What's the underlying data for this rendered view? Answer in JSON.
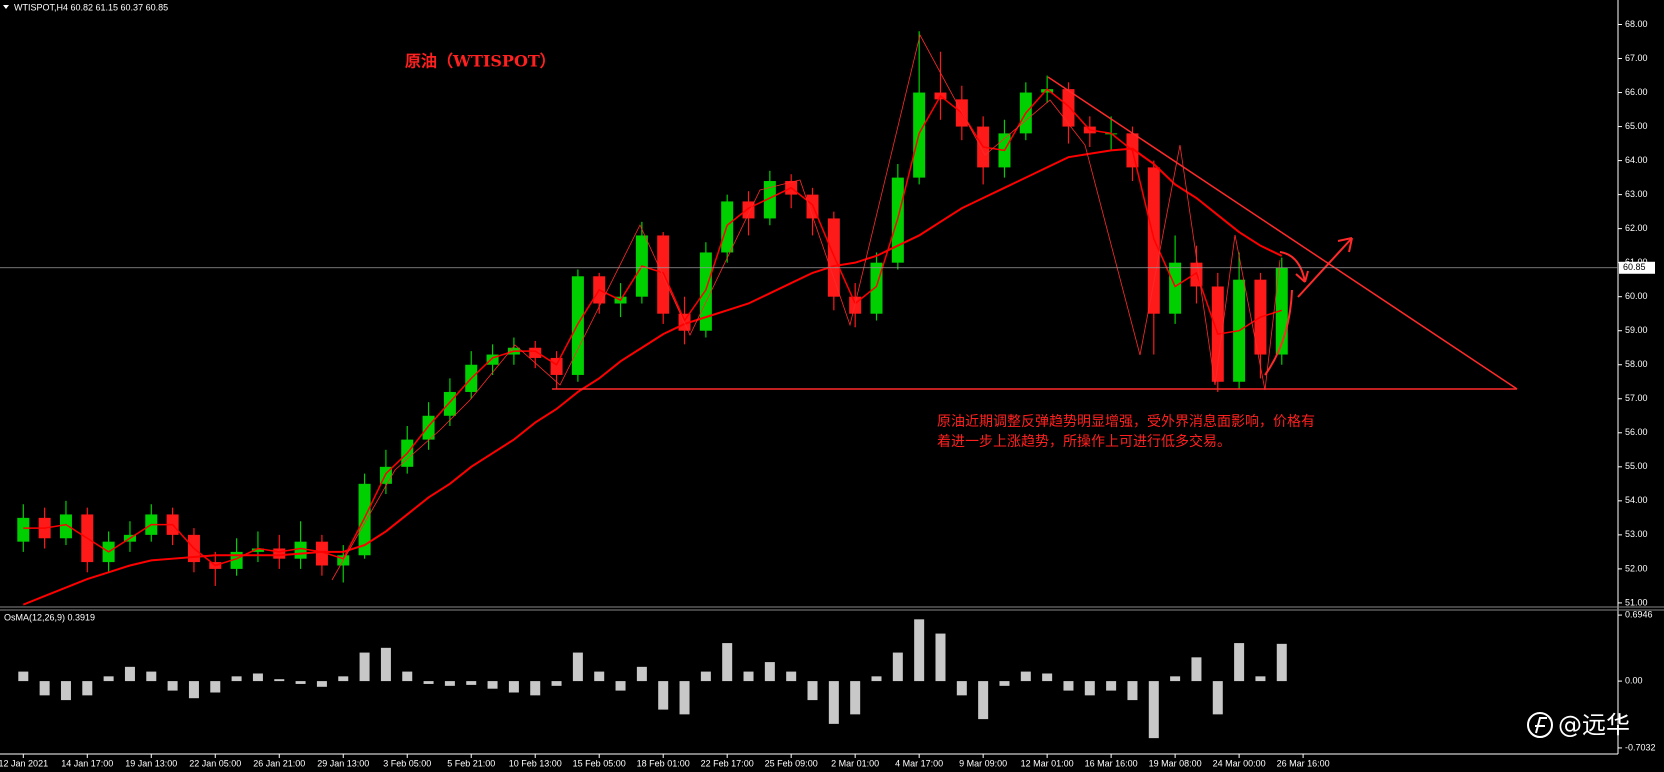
{
  "chart_data": {
    "type": "candlestick",
    "header": "WTISPOT,H4  60.82 61.15 60.37 60.85",
    "title": "原油（WTISPOT）",
    "annotation": [
      "原油近期调整反弹趋势明显增强，受外界消息面影响，价格有",
      "着进一步上涨趋势，所操作上可进行低多交易。"
    ],
    "x_labels": [
      "12 Jan 2021",
      "14 Jan 17:00",
      "19 Jan 13:00",
      "22 Jan 05:00",
      "26 Jan 21:00",
      "29 Jan 13:00",
      "3 Feb 05:00",
      "5 Feb 21:00",
      "10 Feb 13:00",
      "15 Feb 05:00",
      "18 Feb 01:00",
      "22 Feb 17:00",
      "25 Feb 09:00",
      "2 Mar 01:00",
      "4 Mar 17:00",
      "9 Mar 09:00",
      "12 Mar 01:00",
      "16 Mar 16:00",
      "19 Mar 08:00",
      "24 Mar 00:00",
      "26 Mar 16:00"
    ],
    "ylim": [
      50.88,
      68.72
    ],
    "yticks": [
      {
        "value": 51,
        "label": "51.00"
      },
      {
        "value": 52,
        "label": "52.00"
      },
      {
        "value": 53,
        "label": "53.00"
      },
      {
        "value": 54,
        "label": "54.00"
      },
      {
        "value": 55,
        "label": "55.00"
      },
      {
        "value": 56,
        "label": "56.00"
      },
      {
        "value": 57,
        "label": "57.00"
      },
      {
        "value": 58,
        "label": "58.00"
      },
      {
        "value": 59,
        "label": "59.00"
      },
      {
        "value": 60,
        "label": "60.00"
      },
      {
        "value": 61,
        "label": "61.00"
      },
      {
        "value": 62,
        "label": "62.00"
      },
      {
        "value": 63,
        "label": "63.00"
      },
      {
        "value": 64,
        "label": "64.00"
      },
      {
        "value": 65,
        "label": "65.00"
      },
      {
        "value": 66,
        "label": "66.00"
      },
      {
        "value": 67,
        "label": "67.00"
      },
      {
        "value": 68,
        "label": "68.00"
      }
    ],
    "current_price": 60.85,
    "candles": {
      "up_color": "#00d000",
      "down_color": "#ff1a1a",
      "open": [
        52.8,
        53.5,
        52.9,
        53.6,
        52.2,
        52.8,
        53.0,
        53.6,
        53.0,
        52.2,
        52.0,
        52.5,
        52.6,
        52.3,
        52.8,
        52.1,
        52.4,
        54.5,
        55.0,
        55.8,
        56.5,
        57.2,
        58.0,
        58.3,
        58.5,
        58.2,
        57.7,
        60.6,
        59.8,
        60.0,
        61.8,
        59.5,
        59.0,
        61.3,
        62.8,
        62.3,
        63.4,
        63.0,
        62.3,
        60.0,
        59.5,
        61.0,
        63.5,
        66.0,
        65.8,
        65.0,
        63.8,
        64.8,
        66.0,
        66.1,
        65.0,
        64.8,
        64.8,
        63.8,
        59.5,
        61.0,
        60.3,
        57.5,
        60.5,
        58.3
      ],
      "high": [
        53.9,
        53.8,
        54.0,
        53.8,
        53.1,
        53.4,
        53.9,
        53.8,
        53.2,
        52.5,
        52.9,
        53.1,
        53.0,
        53.4,
        53.0,
        52.7,
        54.8,
        55.5,
        56.2,
        56.9,
        57.6,
        58.4,
        58.6,
        58.8,
        58.7,
        58.4,
        60.8,
        60.7,
        60.4,
        62.2,
        61.9,
        60.0,
        61.6,
        63.0,
        63.1,
        63.7,
        63.6,
        63.2,
        62.5,
        60.4,
        61.3,
        63.9,
        67.8,
        67.2,
        66.2,
        65.3,
        65.2,
        66.3,
        66.5,
        66.3,
        65.3,
        65.3,
        65.0,
        64.0,
        61.8,
        61.5,
        60.7,
        61.3,
        60.7,
        61.15
      ],
      "low": [
        52.5,
        52.6,
        52.7,
        51.9,
        51.9,
        52.5,
        52.8,
        52.7,
        51.9,
        51.5,
        51.8,
        52.2,
        52.0,
        52.0,
        51.8,
        51.6,
        52.3,
        54.2,
        54.8,
        55.5,
        56.2,
        57.0,
        57.7,
        58.0,
        57.9,
        57.3,
        57.5,
        59.5,
        59.4,
        59.8,
        59.2,
        58.6,
        58.8,
        61.0,
        61.8,
        62.1,
        62.6,
        61.8,
        59.6,
        59.1,
        59.3,
        60.8,
        63.3,
        65.2,
        64.6,
        63.3,
        63.5,
        64.6,
        65.7,
        64.5,
        64.4,
        64.3,
        63.4,
        58.3,
        59.2,
        59.8,
        57.2,
        57.3,
        57.6,
        58.0
      ],
      "close": [
        53.5,
        52.9,
        53.6,
        52.2,
        52.8,
        53.0,
        53.6,
        53.0,
        52.2,
        52.0,
        52.5,
        52.6,
        52.3,
        52.8,
        52.1,
        52.4,
        54.5,
        55.0,
        55.8,
        56.5,
        57.2,
        58.0,
        58.3,
        58.5,
        58.2,
        57.7,
        60.6,
        59.8,
        60.0,
        61.8,
        59.5,
        59.0,
        61.3,
        62.8,
        62.3,
        63.4,
        63.0,
        62.3,
        60.0,
        59.5,
        61.0,
        63.5,
        66.0,
        65.8,
        65.0,
        63.8,
        64.8,
        66.0,
        66.1,
        65.0,
        64.8,
        64.8,
        63.8,
        59.5,
        61.0,
        60.3,
        57.5,
        60.5,
        58.3,
        60.85
      ]
    },
    "ma_fast": {
      "color": "#ff0000",
      "values": [
        53.2,
        53.2,
        53.3,
        52.9,
        52.5,
        52.9,
        53.3,
        53.3,
        52.6,
        52.1,
        52.3,
        52.6,
        52.5,
        52.6,
        52.5,
        52.3,
        53.5,
        54.8,
        55.4,
        56.2,
        56.9,
        57.6,
        58.2,
        58.4,
        58.4,
        58.0,
        59.2,
        60.2,
        59.9,
        60.9,
        60.7,
        59.3,
        60.2,
        62.1,
        62.6,
        62.9,
        63.2,
        62.7,
        61.2,
        59.8,
        60.3,
        62.3,
        64.8,
        65.9,
        65.4,
        64.4,
        64.3,
        65.4,
        66.1,
        65.6,
        64.9,
        64.8,
        64.3,
        61.7,
        60.3,
        60.7,
        58.9,
        59.0,
        59.4,
        59.6
      ]
    },
    "ma_slow": {
      "color": "#ff0000",
      "values": [
        50.95,
        51.2,
        51.45,
        51.7,
        51.9,
        52.1,
        52.25,
        52.3,
        52.35,
        52.4,
        52.4,
        52.4,
        52.4,
        52.45,
        52.5,
        52.5,
        52.7,
        53.1,
        53.6,
        54.1,
        54.5,
        55.0,
        55.4,
        55.8,
        56.3,
        56.7,
        57.2,
        57.6,
        58.1,
        58.5,
        58.9,
        59.2,
        59.4,
        59.6,
        59.8,
        60.1,
        60.4,
        60.7,
        60.9,
        61.0,
        61.2,
        61.5,
        61.8,
        62.2,
        62.6,
        62.9,
        63.2,
        63.5,
        63.8,
        64.1,
        64.2,
        64.3,
        64.35,
        63.9,
        63.3,
        62.9,
        62.4,
        61.9,
        61.5,
        61.2
      ]
    },
    "indicator": {
      "label": "OsMA(12,26,9) 0.3919",
      "color": "#c8c8c8",
      "ylim": [
        -0.746,
        0.727
      ],
      "yticks": [
        0.6946,
        {
          "value": 0,
          "label": "0.00"
        },
        -0.7032
      ],
      "values": [
        0.1,
        -0.15,
        -0.2,
        -0.15,
        0.05,
        0.15,
        0.1,
        -0.1,
        -0.18,
        -0.12,
        0.05,
        0.08,
        0.02,
        -0.03,
        -0.06,
        0.05,
        0.3,
        0.35,
        0.1,
        -0.03,
        -0.05,
        -0.04,
        -0.08,
        -0.12,
        -0.15,
        -0.05,
        0.3,
        0.1,
        -0.1,
        0.15,
        -0.3,
        -0.35,
        0.1,
        0.4,
        0.1,
        0.2,
        0.1,
        -0.2,
        -0.45,
        -0.35,
        0.05,
        0.3,
        0.65,
        0.5,
        -0.15,
        -0.4,
        -0.05,
        0.1,
        0.08,
        -0.1,
        -0.15,
        -0.1,
        -0.2,
        -0.6,
        0.05,
        0.25,
        -0.35,
        0.4,
        0.05,
        0.3919
      ]
    },
    "watermark": "@远华"
  }
}
